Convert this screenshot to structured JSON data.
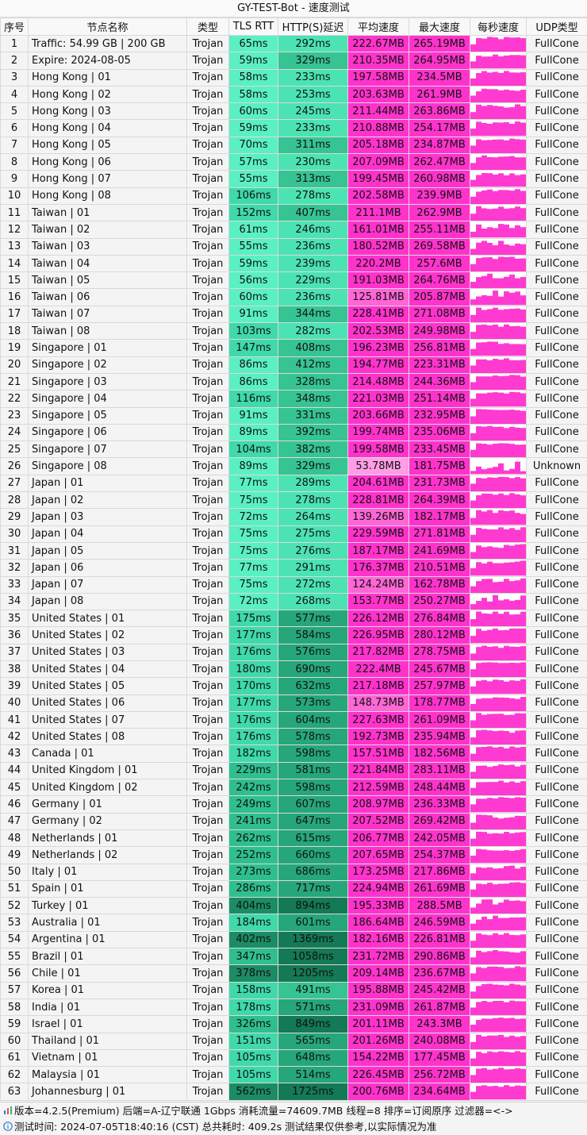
{
  "title": "GY-TEST-Bot - 速度测试",
  "headers": [
    "序号",
    "节点名称",
    "类型",
    "TLS RTT",
    "HTTP(S)延迟",
    "平均速度",
    "最大速度",
    "每秒速度",
    "UDP类型"
  ],
  "rows": [
    [
      "1",
      "Traffic: 54.99 GB | 200 GB",
      "Trojan",
      "65ms",
      "292ms",
      "222.67MB",
      "265.19MB",
      "FullCone"
    ],
    [
      "2",
      "Expire: 2024-08-05",
      "Trojan",
      "59ms",
      "329ms",
      "210.35MB",
      "264.95MB",
      "FullCone"
    ],
    [
      "3",
      "Hong Kong | 01",
      "Trojan",
      "58ms",
      "233ms",
      "197.58MB",
      "234.5MB",
      "FullCone"
    ],
    [
      "4",
      "Hong Kong | 02",
      "Trojan",
      "58ms",
      "253ms",
      "203.63MB",
      "261.9MB",
      "FullCone"
    ],
    [
      "5",
      "Hong Kong | 03",
      "Trojan",
      "60ms",
      "245ms",
      "211.44MB",
      "263.86MB",
      "FullCone"
    ],
    [
      "6",
      "Hong Kong | 04",
      "Trojan",
      "59ms",
      "233ms",
      "210.88MB",
      "254.17MB",
      "FullCone"
    ],
    [
      "7",
      "Hong Kong | 05",
      "Trojan",
      "70ms",
      "311ms",
      "205.18MB",
      "234.87MB",
      "FullCone"
    ],
    [
      "8",
      "Hong Kong | 06",
      "Trojan",
      "57ms",
      "230ms",
      "207.09MB",
      "262.47MB",
      "FullCone"
    ],
    [
      "9",
      "Hong Kong | 07",
      "Trojan",
      "55ms",
      "313ms",
      "199.45MB",
      "260.98MB",
      "FullCone"
    ],
    [
      "10",
      "Hong Kong | 08",
      "Trojan",
      "106ms",
      "278ms",
      "202.58MB",
      "239.9MB",
      "FullCone"
    ],
    [
      "11",
      "Taiwan | 01",
      "Trojan",
      "152ms",
      "407ms",
      "211.1MB",
      "262.9MB",
      "FullCone"
    ],
    [
      "12",
      "Taiwan | 02",
      "Trojan",
      "61ms",
      "246ms",
      "161.01MB",
      "255.11MB",
      "FullCone"
    ],
    [
      "13",
      "Taiwan | 03",
      "Trojan",
      "55ms",
      "236ms",
      "180.52MB",
      "269.58MB",
      "FullCone"
    ],
    [
      "14",
      "Taiwan | 04",
      "Trojan",
      "59ms",
      "239ms",
      "220.2MB",
      "257.6MB",
      "FullCone"
    ],
    [
      "15",
      "Taiwan | 05",
      "Trojan",
      "56ms",
      "229ms",
      "191.03MB",
      "264.76MB",
      "FullCone"
    ],
    [
      "16",
      "Taiwan | 06",
      "Trojan",
      "60ms",
      "236ms",
      "125.81MB",
      "205.87MB",
      "FullCone"
    ],
    [
      "17",
      "Taiwan | 07",
      "Trojan",
      "91ms",
      "344ms",
      "228.41MB",
      "271.08MB",
      "FullCone"
    ],
    [
      "18",
      "Taiwan | 08",
      "Trojan",
      "103ms",
      "282ms",
      "202.53MB",
      "249.98MB",
      "FullCone"
    ],
    [
      "19",
      "Singapore | 01",
      "Trojan",
      "147ms",
      "408ms",
      "196.23MB",
      "256.81MB",
      "FullCone"
    ],
    [
      "20",
      "Singapore | 02",
      "Trojan",
      "86ms",
      "412ms",
      "194.77MB",
      "223.31MB",
      "FullCone"
    ],
    [
      "21",
      "Singapore | 03",
      "Trojan",
      "86ms",
      "328ms",
      "214.48MB",
      "244.36MB",
      "FullCone"
    ],
    [
      "22",
      "Singapore | 04",
      "Trojan",
      "116ms",
      "348ms",
      "221.03MB",
      "251.14MB",
      "FullCone"
    ],
    [
      "23",
      "Singapore | 05",
      "Trojan",
      "91ms",
      "331ms",
      "203.66MB",
      "232.95MB",
      "FullCone"
    ],
    [
      "24",
      "Singapore | 06",
      "Trojan",
      "89ms",
      "392ms",
      "199.74MB",
      "235.06MB",
      "FullCone"
    ],
    [
      "25",
      "Singapore | 07",
      "Trojan",
      "104ms",
      "382ms",
      "199.58MB",
      "233.45MB",
      "FullCone"
    ],
    [
      "26",
      "Singapore | 08",
      "Trojan",
      "89ms",
      "329ms",
      "53.78MB",
      "181.75MB",
      "Unknown"
    ],
    [
      "27",
      "Japan | 01",
      "Trojan",
      "77ms",
      "289ms",
      "204.61MB",
      "231.73MB",
      "FullCone"
    ],
    [
      "28",
      "Japan | 02",
      "Trojan",
      "75ms",
      "278ms",
      "228.81MB",
      "264.39MB",
      "FullCone"
    ],
    [
      "29",
      "Japan | 03",
      "Trojan",
      "72ms",
      "264ms",
      "139.26MB",
      "182.17MB",
      "FullCone"
    ],
    [
      "30",
      "Japan | 04",
      "Trojan",
      "75ms",
      "275ms",
      "229.59MB",
      "271.81MB",
      "FullCone"
    ],
    [
      "31",
      "Japan | 05",
      "Trojan",
      "75ms",
      "276ms",
      "187.17MB",
      "241.69MB",
      "FullCone"
    ],
    [
      "32",
      "Japan | 06",
      "Trojan",
      "77ms",
      "291ms",
      "176.37MB",
      "210.51MB",
      "FullCone"
    ],
    [
      "33",
      "Japan | 07",
      "Trojan",
      "75ms",
      "272ms",
      "124.24MB",
      "162.78MB",
      "FullCone"
    ],
    [
      "34",
      "Japan | 08",
      "Trojan",
      "72ms",
      "268ms",
      "153.77MB",
      "250.27MB",
      "FullCone"
    ],
    [
      "35",
      "United States | 01",
      "Trojan",
      "175ms",
      "577ms",
      "226.12MB",
      "276.84MB",
      "FullCone"
    ],
    [
      "36",
      "United States | 02",
      "Trojan",
      "177ms",
      "584ms",
      "226.95MB",
      "280.12MB",
      "FullCone"
    ],
    [
      "37",
      "United States | 03",
      "Trojan",
      "176ms",
      "576ms",
      "217.82MB",
      "278.75MB",
      "FullCone"
    ],
    [
      "38",
      "United States | 04",
      "Trojan",
      "180ms",
      "690ms",
      "222.4MB",
      "245.67MB",
      "FullCone"
    ],
    [
      "39",
      "United States | 05",
      "Trojan",
      "170ms",
      "632ms",
      "217.18MB",
      "257.97MB",
      "FullCone"
    ],
    [
      "40",
      "United States | 06",
      "Trojan",
      "177ms",
      "573ms",
      "148.73MB",
      "178.77MB",
      "FullCone"
    ],
    [
      "41",
      "United States | 07",
      "Trojan",
      "176ms",
      "604ms",
      "227.63MB",
      "261.09MB",
      "FullCone"
    ],
    [
      "42",
      "United States | 08",
      "Trojan",
      "176ms",
      "578ms",
      "192.73MB",
      "235.94MB",
      "FullCone"
    ],
    [
      "43",
      "Canada | 01",
      "Trojan",
      "182ms",
      "598ms",
      "157.51MB",
      "182.56MB",
      "FullCone"
    ],
    [
      "44",
      "United Kingdom | 01",
      "Trojan",
      "229ms",
      "581ms",
      "221.84MB",
      "283.11MB",
      "FullCone"
    ],
    [
      "45",
      "United Kingdom | 02",
      "Trojan",
      "242ms",
      "598ms",
      "212.59MB",
      "248.44MB",
      "FullCone"
    ],
    [
      "46",
      "Germany | 01",
      "Trojan",
      "249ms",
      "607ms",
      "208.97MB",
      "236.33MB",
      "FullCone"
    ],
    [
      "47",
      "Germany | 02",
      "Trojan",
      "241ms",
      "647ms",
      "207.52MB",
      "269.42MB",
      "FullCone"
    ],
    [
      "48",
      "Netherlands | 01",
      "Trojan",
      "262ms",
      "615ms",
      "206.77MB",
      "242.05MB",
      "FullCone"
    ],
    [
      "49",
      "Netherlands | 02",
      "Trojan",
      "252ms",
      "660ms",
      "207.65MB",
      "254.37MB",
      "FullCone"
    ],
    [
      "50",
      "Italy | 01",
      "Trojan",
      "273ms",
      "686ms",
      "173.25MB",
      "217.86MB",
      "FullCone"
    ],
    [
      "51",
      "Spain | 01",
      "Trojan",
      "286ms",
      "717ms",
      "224.94MB",
      "261.69MB",
      "FullCone"
    ],
    [
      "52",
      "Turkey | 01",
      "Trojan",
      "404ms",
      "894ms",
      "195.33MB",
      "288.5MB",
      "FullCone"
    ],
    [
      "53",
      "Australia | 01",
      "Trojan",
      "184ms",
      "601ms",
      "186.64MB",
      "246.59MB",
      "FullCone"
    ],
    [
      "54",
      "Argentina | 01",
      "Trojan",
      "402ms",
      "1369ms",
      "182.16MB",
      "226.81MB",
      "FullCone"
    ],
    [
      "55",
      "Brazil | 01",
      "Trojan",
      "347ms",
      "1058ms",
      "231.72MB",
      "290.86MB",
      "FullCone"
    ],
    [
      "56",
      "Chile | 01",
      "Trojan",
      "378ms",
      "1205ms",
      "209.14MB",
      "236.67MB",
      "FullCone"
    ],
    [
      "57",
      "Korea | 01",
      "Trojan",
      "158ms",
      "491ms",
      "195.88MB",
      "245.42MB",
      "FullCone"
    ],
    [
      "58",
      "India | 01",
      "Trojan",
      "178ms",
      "571ms",
      "231.09MB",
      "261.87MB",
      "FullCone"
    ],
    [
      "59",
      "Israel | 01",
      "Trojan",
      "326ms",
      "849ms",
      "201.11MB",
      "243.3MB",
      "FullCone"
    ],
    [
      "60",
      "Thailand | 01",
      "Trojan",
      "151ms",
      "565ms",
      "201.26MB",
      "240.08MB",
      "FullCone"
    ],
    [
      "61",
      "Vietnam | 01",
      "Trojan",
      "105ms",
      "648ms",
      "154.22MB",
      "177.45MB",
      "FullCone"
    ],
    [
      "62",
      "Malaysia | 01",
      "Trojan",
      "105ms",
      "514ms",
      "226.45MB",
      "256.72MB",
      "FullCone"
    ],
    [
      "63",
      "Johannesburg | 01",
      "Trojan",
      "562ms",
      "1725ms",
      "200.76MB",
      "234.64MB",
      "FullCone"
    ]
  ],
  "footer": {
    "line1": "版本=4.2.5(Premium)  后端=A-辽宁联通 1Gbps  消耗流量=74609.7MB   线程=8  排序=订阅原序  过滤器=<->",
    "line2": "测试时间: 2024-07-05T18:40:16 (CST) 总共耗时: 409.2s 测试结果仅供参考,以实际情况为准"
  },
  "icons": {
    "footer1": "chart-icon",
    "footer2": "info-icon"
  },
  "colors": {
    "tls_fast": "#5af0c2",
    "tls_mid": "#3fd9aa",
    "tls_slow": "#2fbf8f",
    "tls_worst": "#1c8c64",
    "http_fast": "#4ce3b3",
    "http_mid": "#36c493",
    "http_slow": "#26a77b",
    "http_worst": "#137a55",
    "speed_high": "#ff33cc",
    "speed_mid": "#ff66d6",
    "speed_low": "#ff9ee6",
    "spark": "#ff3ad0"
  }
}
